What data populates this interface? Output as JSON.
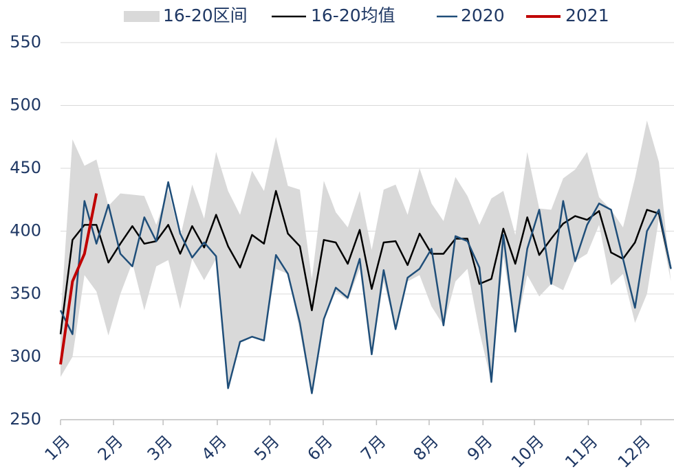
{
  "chart_data": {
    "type": "line",
    "x": [
      1,
      2,
      3,
      4,
      5,
      6,
      7,
      8,
      9,
      10,
      11,
      12,
      13,
      14,
      15,
      16,
      17,
      18,
      19,
      20,
      21,
      22,
      23,
      24,
      25,
      26,
      27,
      28,
      29,
      30,
      31,
      32,
      33,
      34,
      35,
      36,
      37,
      38,
      39,
      40,
      41,
      42,
      43,
      44,
      45,
      46,
      47,
      48,
      49,
      50,
      51,
      52
    ],
    "xlim": [
      1,
      52.26
    ],
    "xticks": [
      {
        "value": 1,
        "label": "1月"
      },
      {
        "value": 5.43,
        "label": "2月"
      },
      {
        "value": 9.57,
        "label": "3月"
      },
      {
        "value": 14.1,
        "label": "4月"
      },
      {
        "value": 18.5,
        "label": "5月"
      },
      {
        "value": 22.95,
        "label": "6月"
      },
      {
        "value": 27.4,
        "label": "7月"
      },
      {
        "value": 31.8,
        "label": "8月"
      },
      {
        "value": 36.3,
        "label": "9月"
      },
      {
        "value": 40.6,
        "label": "10月"
      },
      {
        "value": 45.1,
        "label": "11月"
      },
      {
        "value": 49.5,
        "label": "12月"
      }
    ],
    "ylim": [
      250,
      550
    ],
    "yticks": [
      250,
      300,
      350,
      400,
      450,
      500,
      550
    ],
    "grid": true,
    "legend": "top",
    "band": {
      "name": "16-20区间",
      "color": "#d9d9d9",
      "upper": [
        330,
        473,
        452,
        457,
        420,
        430,
        429,
        428,
        405,
        433,
        395,
        437,
        410,
        463,
        432,
        413,
        448,
        432,
        475,
        436,
        433,
        362,
        440,
        415,
        403,
        432,
        385,
        433,
        437,
        413,
        450,
        422,
        408,
        443,
        428,
        405,
        426,
        432,
        397,
        463,
        418,
        417,
        442,
        449,
        463,
        427,
        417,
        403,
        442,
        488,
        455,
        360
      ],
      "lower": [
        284,
        300,
        365,
        352,
        317,
        350,
        375,
        337,
        372,
        377,
        338,
        378,
        361,
        378,
        275,
        312,
        316,
        313,
        370,
        366,
        320,
        271,
        330,
        352,
        345,
        370,
        302,
        360,
        322,
        360,
        365,
        340,
        325,
        360,
        370,
        320,
        280,
        380,
        320,
        365,
        348,
        358,
        353,
        376,
        382,
        405,
        357,
        366,
        327,
        350,
        410,
        360
      ]
    },
    "series": [
      {
        "name": "16-20均值",
        "color": "#000000",
        "width": 2.5,
        "values": [
          318,
          393,
          405,
          405,
          375,
          390,
          404,
          390,
          392,
          405,
          382,
          404,
          387,
          413,
          388,
          371,
          397,
          390,
          432,
          398,
          388,
          337,
          393,
          391,
          374,
          401,
          354,
          391,
          392,
          373,
          398,
          382,
          382,
          394,
          394,
          358,
          362,
          402,
          374,
          411,
          381,
          394,
          406,
          412,
          409,
          416,
          383,
          378,
          391,
          417,
          414,
          370
        ]
      },
      {
        "name": "2020",
        "color": "#1f4e79",
        "width": 2.5,
        "values": [
          337,
          318,
          424,
          390,
          421,
          382,
          372,
          411,
          392,
          439,
          398,
          379,
          391,
          380,
          275,
          312,
          316,
          313,
          381,
          366,
          327,
          271,
          330,
          355,
          347,
          378,
          302,
          369,
          322,
          363,
          370,
          386,
          325,
          396,
          392,
          371,
          280,
          397,
          320,
          386,
          417,
          358,
          424,
          376,
          405,
          422,
          417,
          378,
          339,
          400,
          417,
          370
        ]
      },
      {
        "name": "2021",
        "color": "#c00000",
        "width": 4,
        "values": [
          294,
          360,
          382,
          430,
          null,
          null,
          null,
          null,
          null,
          null,
          null,
          null,
          null,
          null,
          null,
          null,
          null,
          null,
          null,
          null,
          null,
          null,
          null,
          null,
          null,
          null,
          null,
          null,
          null,
          null,
          null,
          null,
          null,
          null,
          null,
          null,
          null,
          null,
          null,
          null,
          null,
          null,
          null,
          null,
          null,
          null,
          null,
          null,
          null,
          null,
          null,
          null
        ]
      }
    ]
  }
}
